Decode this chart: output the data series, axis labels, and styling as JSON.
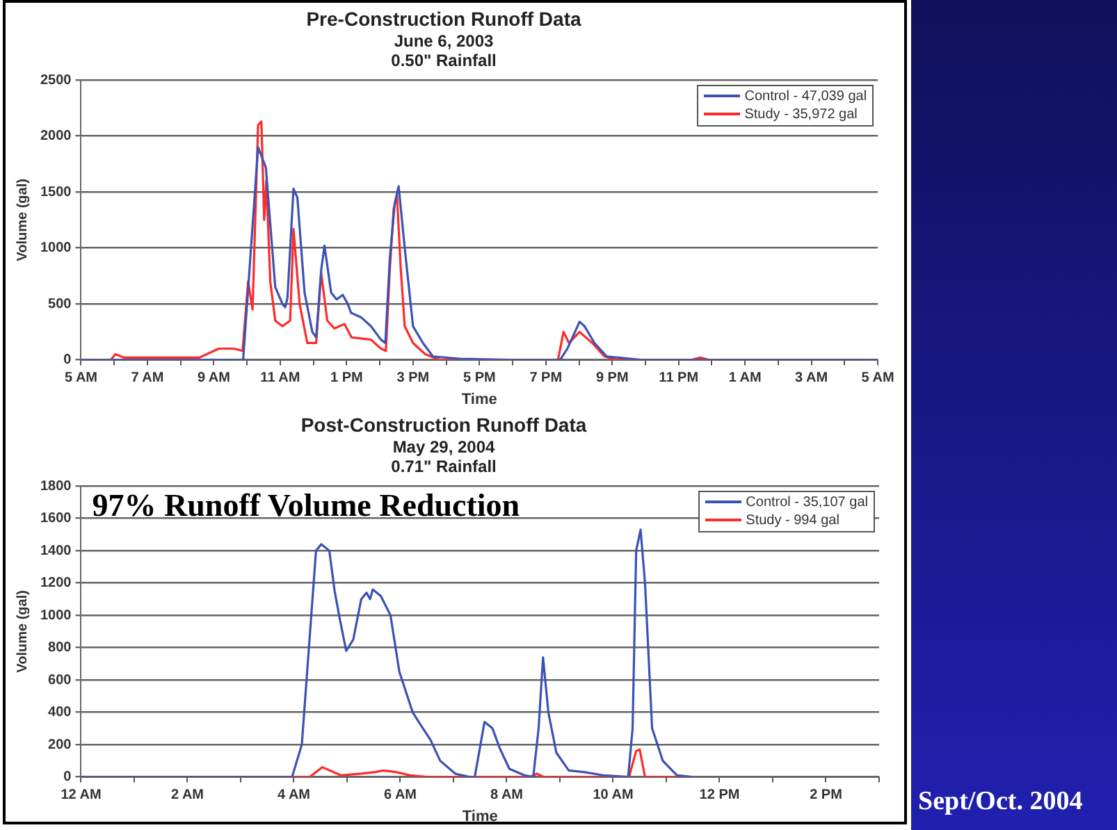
{
  "chart_data": [
    {
      "type": "line",
      "title": "Pre-Construction Runoff Data",
      "subtitle": "June 6, 2003\n0.50\" Rainfall",
      "xlabel": "Time",
      "ylabel": "Volume (gal)",
      "xlim": [
        "2003-06-06T05:00",
        "2003-06-07T05:00"
      ],
      "xticks": [
        {
          "value": "2003-06-06T05:00",
          "label": "5 AM"
        },
        {
          "value": "2003-06-06T06:00",
          "label": null
        },
        {
          "value": "2003-06-06T07:00",
          "label": "7 AM"
        },
        {
          "value": "2003-06-06T08:00",
          "label": null
        },
        {
          "value": "2003-06-06T09:00",
          "label": "9 AM"
        },
        {
          "value": "2003-06-06T10:00",
          "label": null
        },
        {
          "value": "2003-06-06T11:00",
          "label": "11 AM"
        },
        {
          "value": "2003-06-06T12:00",
          "label": null
        },
        {
          "value": "2003-06-06T13:00",
          "label": "1 PM"
        },
        {
          "value": "2003-06-06T14:00",
          "label": null
        },
        {
          "value": "2003-06-06T15:00",
          "label": "3 PM"
        },
        {
          "value": "2003-06-06T16:00",
          "label": null
        },
        {
          "value": "2003-06-06T17:00",
          "label": "5 PM"
        },
        {
          "value": "2003-06-06T18:00",
          "label": null
        },
        {
          "value": "2003-06-06T19:00",
          "label": "7 PM"
        },
        {
          "value": "2003-06-06T20:00",
          "label": null
        },
        {
          "value": "2003-06-06T21:00",
          "label": "9 PM"
        },
        {
          "value": "2003-06-06T22:00",
          "label": null
        },
        {
          "value": "2003-06-06T23:00",
          "label": "11 PM"
        },
        {
          "value": "2003-06-07T00:00",
          "label": null
        },
        {
          "value": "2003-06-07T01:00",
          "label": "1 AM"
        },
        {
          "value": "2003-06-07T02:00",
          "label": null
        },
        {
          "value": "2003-06-07T03:00",
          "label": "3 AM"
        },
        {
          "value": "2003-06-07T04:00",
          "label": null
        },
        {
          "value": "2003-06-07T05:00",
          "label": "5 AM"
        }
      ],
      "ylim": [
        0,
        2500
      ],
      "yticks": [
        0,
        500,
        1000,
        1500,
        2000,
        2500
      ],
      "grid": "y",
      "legend": "top right",
      "line_style": "solid",
      "marker": "none",
      "series": [
        {
          "name": "Control - 47,039 gal",
          "color": "#3b52b4",
          "x": [
            "2003-06-06T05:00",
            "2003-06-06T09:53",
            "2003-06-06T10:20",
            "2003-06-06T10:34",
            "2003-06-06T10:51",
            "2003-06-06T11:04",
            "2003-06-06T11:09",
            "2003-06-06T11:13",
            "2003-06-06T11:24",
            "2003-06-06T11:31",
            "2003-06-06T11:44",
            "2003-06-06T11:58",
            "2003-06-06T12:05",
            "2003-06-06T12:14",
            "2003-06-06T12:20",
            "2003-06-06T12:32",
            "2003-06-06T12:42",
            "2003-06-06T12:53",
            "2003-06-06T13:02",
            "2003-06-06T13:08",
            "2003-06-06T13:26",
            "2003-06-06T13:44",
            "2003-06-06T14:02",
            "2003-06-06T14:10",
            "2003-06-06T14:18",
            "2003-06-06T14:27",
            "2003-06-06T14:34",
            "2003-06-06T14:45",
            "2003-06-06T15:00",
            "2003-06-06T15:18",
            "2003-06-06T15:36",
            "2003-06-06T16:24",
            "2003-06-06T17:54",
            "2003-06-06T19:26",
            "2003-06-06T19:39",
            "2003-06-06T20:01",
            "2003-06-06T20:10",
            "2003-06-06T20:28",
            "2003-06-06T20:50",
            "2003-06-06T21:52",
            "2003-06-07T05:00"
          ],
          "values": [
            0,
            0,
            1900,
            1720,
            650,
            500,
            470,
            550,
            1530,
            1450,
            600,
            250,
            200,
            800,
            1020,
            600,
            540,
            580,
            500,
            420,
            380,
            300,
            180,
            150,
            900,
            1400,
            1550,
            1000,
            300,
            150,
            30,
            10,
            0,
            0,
            100,
            340,
            300,
            150,
            30,
            0,
            0
          ]
        },
        {
          "name": "Study - 35,972 gal",
          "color": "#ff2a2a",
          "x": [
            "2003-06-06T05:00",
            "2003-06-06T05:54",
            "2003-06-06T06:02",
            "2003-06-06T06:18",
            "2003-06-06T08:34",
            "2003-06-06T09:09",
            "2003-06-06T09:36",
            "2003-06-06T09:52",
            "2003-06-06T10:02",
            "2003-06-06T10:10",
            "2003-06-06T10:20",
            "2003-06-06T10:26",
            "2003-06-06T10:31",
            "2003-06-06T10:35",
            "2003-06-06T10:42",
            "2003-06-06T10:51",
            "2003-06-06T11:04",
            "2003-06-06T11:18",
            "2003-06-06T11:24",
            "2003-06-06T11:35",
            "2003-06-06T11:49",
            "2003-06-06T12:05",
            "2003-06-06T12:14",
            "2003-06-06T12:25",
            "2003-06-06T12:38",
            "2003-06-06T12:56",
            "2003-06-06T13:09",
            "2003-06-06T13:44",
            "2003-06-06T14:02",
            "2003-06-06T14:11",
            "2003-06-06T14:18",
            "2003-06-06T14:25",
            "2003-06-06T14:31",
            "2003-06-06T14:38",
            "2003-06-06T14:45",
            "2003-06-06T15:00",
            "2003-06-06T15:22",
            "2003-06-06T15:48",
            "2003-06-06T19:22",
            "2003-06-06T19:32",
            "2003-06-06T19:42",
            "2003-06-06T20:01",
            "2003-06-06T20:24",
            "2003-06-06T20:46",
            "2003-06-06T21:08",
            "2003-06-06T23:24",
            "2003-06-06T23:39",
            "2003-06-06T23:54",
            "2003-06-07T05:00"
          ],
          "values": [
            0,
            0,
            50,
            20,
            20,
            100,
            100,
            80,
            700,
            450,
            2100,
            2130,
            1250,
            1600,
            700,
            350,
            300,
            350,
            1170,
            500,
            150,
            150,
            780,
            350,
            280,
            320,
            200,
            180,
            100,
            80,
            800,
            1350,
            1470,
            800,
            300,
            150,
            50,
            0,
            0,
            250,
            150,
            250,
            150,
            30,
            0,
            0,
            20,
            0,
            0
          ]
        }
      ]
    },
    {
      "type": "line",
      "title": "Post-Construction Runoff Data",
      "subtitle": "May 29, 2004\n0.71\" Rainfall",
      "xlabel": "Time",
      "ylabel": "Volume (gal)",
      "xlim": [
        "2004-05-29T00:00",
        "2004-05-29T15:00"
      ],
      "xticks": [
        {
          "value": "2004-05-29T00:00",
          "label": "12 AM"
        },
        {
          "value": "2004-05-29T01:00",
          "label": null
        },
        {
          "value": "2004-05-29T02:00",
          "label": "2 AM"
        },
        {
          "value": "2004-05-29T03:00",
          "label": null
        },
        {
          "value": "2004-05-29T04:00",
          "label": "4 AM"
        },
        {
          "value": "2004-05-29T05:00",
          "label": null
        },
        {
          "value": "2004-05-29T06:00",
          "label": "6 AM"
        },
        {
          "value": "2004-05-29T07:00",
          "label": null
        },
        {
          "value": "2004-05-29T08:00",
          "label": "8 AM"
        },
        {
          "value": "2004-05-29T09:00",
          "label": null
        },
        {
          "value": "2004-05-29T10:00",
          "label": "10 AM"
        },
        {
          "value": "2004-05-29T11:00",
          "label": null
        },
        {
          "value": "2004-05-29T12:00",
          "label": "12 PM"
        },
        {
          "value": "2004-05-29T13:00",
          "label": null
        },
        {
          "value": "2004-05-29T14:00",
          "label": "2 PM"
        },
        {
          "value": "2004-05-29T15:00",
          "label": null
        }
      ],
      "ylim": [
        0,
        1800
      ],
      "yticks": [
        0,
        200,
        400,
        600,
        800,
        1000,
        1200,
        1400,
        1600,
        1800
      ],
      "grid": "y",
      "legend": "top right",
      "line_style": "solid",
      "marker": "none",
      "annotations": [
        "97% Runoff Volume Reduction"
      ],
      "series": [
        {
          "name": "Control - 35,107 gal",
          "color": "#3b52b4",
          "x": [
            "2004-05-29T00:00",
            "2004-05-29T03:58",
            "2004-05-29T04:09",
            "2004-05-29T04:17",
            "2004-05-29T04:25",
            "2004-05-29T04:31",
            "2004-05-29T04:40",
            "2004-05-29T04:46",
            "2004-05-29T04:51",
            "2004-05-29T04:59",
            "2004-05-29T05:07",
            "2004-05-29T05:16",
            "2004-05-29T05:22",
            "2004-05-29T05:26",
            "2004-05-29T05:29",
            "2004-05-29T05:38",
            "2004-05-29T05:49",
            "2004-05-29T05:59",
            "2004-05-29T06:14",
            "2004-05-29T06:22",
            "2004-05-29T06:34",
            "2004-05-29T06:45",
            "2004-05-29T07:02",
            "2004-05-29T07:18",
            "2004-05-29T07:24",
            "2004-05-29T07:35",
            "2004-05-29T07:44",
            "2004-05-29T07:52",
            "2004-05-29T08:03",
            "2004-05-29T08:20",
            "2004-05-29T08:30",
            "2004-05-29T08:36",
            "2004-05-29T08:41",
            "2004-05-29T08:47",
            "2004-05-29T08:56",
            "2004-05-29T09:10",
            "2004-05-29T09:27",
            "2004-05-29T09:49",
            "2004-05-29T10:17",
            "2004-05-29T10:22",
            "2004-05-29T10:26",
            "2004-05-29T10:31",
            "2004-05-29T10:36",
            "2004-05-29T10:44",
            "2004-05-29T10:56",
            "2004-05-29T11:12",
            "2004-05-29T11:29"
          ],
          "values": [
            0,
            0,
            200,
            800,
            1400,
            1440,
            1400,
            1150,
            1000,
            780,
            850,
            1100,
            1140,
            1100,
            1160,
            1120,
            1000,
            650,
            400,
            330,
            230,
            100,
            20,
            0,
            0,
            340,
            300,
            180,
            50,
            10,
            0,
            300,
            740,
            400,
            150,
            40,
            30,
            10,
            0,
            300,
            1400,
            1530,
            1200,
            300,
            100,
            10,
            0
          ]
        },
        {
          "name": "Study - 994 gal",
          "color": "#ff2a2a",
          "x": [
            "2004-05-29T00:00",
            "2004-05-29T04:18",
            "2004-05-29T04:32",
            "2004-05-29T04:53",
            "2004-05-29T05:16",
            "2004-05-29T05:32",
            "2004-05-29T05:41",
            "2004-05-29T05:55",
            "2004-05-29T06:11",
            "2004-05-29T06:30",
            "2004-05-29T08:27",
            "2004-05-29T08:34",
            "2004-05-29T08:42",
            "2004-05-29T10:18",
            "2004-05-29T10:26",
            "2004-05-29T10:30",
            "2004-05-29T10:36",
            "2004-05-29T11:30"
          ],
          "values": [
            0,
            0,
            60,
            10,
            20,
            30,
            40,
            30,
            10,
            0,
            0,
            20,
            0,
            0,
            160,
            170,
            0,
            0
          ]
        }
      ]
    },
    {
      "type": "other",
      "annotations": [
        "Sept/Oct. 2004"
      ]
    }
  ]
}
